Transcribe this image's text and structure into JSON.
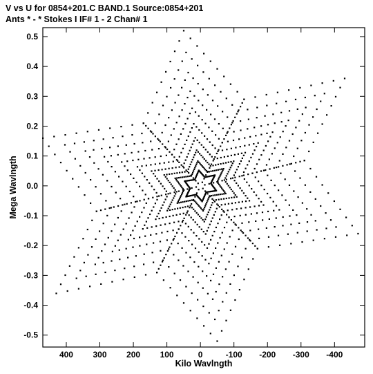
{
  "header": {
    "line1": "V vs U for 0854+201.C BAND.1   Source:0854+201",
    "line2": "Ants * - *    Stokes I  IF# 1 - 2  Chan# 1"
  },
  "chart_data": {
    "type": "scatter",
    "title": "V vs U for 0854+201.C BAND.1   Source:0854+201",
    "subtitle": "Ants * - *    Stokes I  IF# 1 - 2  Chan# 1",
    "xlabel": "Kilo Wavlngth",
    "ylabel": "Mega Wavlngth",
    "x_unit": "kilo wavelengths",
    "y_unit": "mega wavelengths",
    "x_axis_reversed": true,
    "xlim": [
      470,
      -490
    ],
    "ylim": [
      -0.54,
      0.53
    ],
    "x_ticks": [
      400,
      300,
      200,
      100,
      0,
      -100,
      -200,
      -300,
      -400
    ],
    "x_tick_labels": [
      "400",
      "300",
      "200",
      "100",
      "0",
      "-100",
      "-200",
      "-300",
      "-400"
    ],
    "y_ticks": [
      0.5,
      0.4,
      0.3,
      0.2,
      0.1,
      0.0,
      -0.1,
      -0.2,
      -0.3,
      -0.4,
      -0.5
    ],
    "y_tick_labels": [
      "0.5",
      "0.4",
      "0.3",
      "0.2",
      "0.1",
      "0.0",
      "-0.1",
      "-0.2",
      "-0.3",
      "-0.4",
      "-0.5"
    ],
    "grid": false,
    "legend": "none",
    "marker_color": "#000000",
    "description": "uv-coverage forming a six-pointed star of dot tracks, symmetric through the origin",
    "star_tips": [
      {
        "x": 50,
        "y": 0.52
      },
      {
        "x": -50,
        "y": -0.52
      },
      {
        "x": 470,
        "y": 0.16
      },
      {
        "x": -470,
        "y": -0.16
      },
      {
        "x": 430,
        "y": -0.36
      },
      {
        "x": -430,
        "y": 0.36
      }
    ],
    "notches": [
      {
        "x": -130,
        "y": 0.29
      },
      {
        "x": 130,
        "y": -0.29
      },
      {
        "x": -310,
        "y": 0.085
      },
      {
        "x": 310,
        "y": -0.085
      },
      {
        "x": 170,
        "y": 0.21
      },
      {
        "x": -170,
        "y": -0.21
      }
    ],
    "points_per_edge": 9,
    "edge_offsets_between_dots": [
      0.25,
      0.5,
      0.75
    ],
    "points": []
  }
}
